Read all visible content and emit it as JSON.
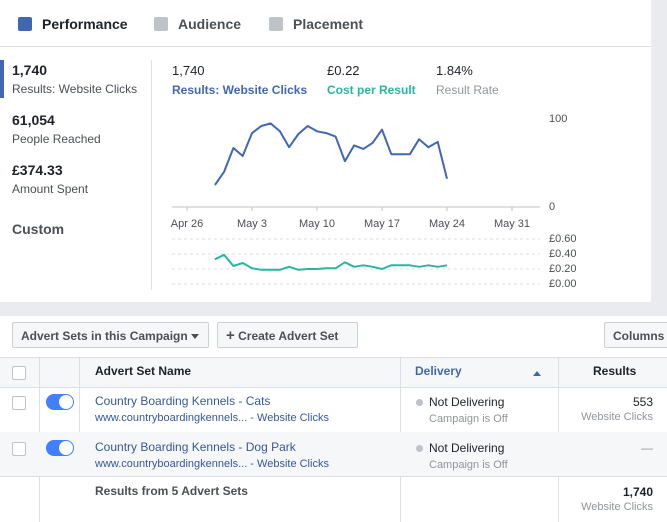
{
  "tabs": [
    "Performance",
    "Audience",
    "Placement"
  ],
  "summary": [
    {
      "value": "1,740",
      "label": "Results: Website Clicks"
    },
    {
      "value": "61,054",
      "label": "People Reached"
    },
    {
      "value": "£374.33",
      "label": "Amount Spent"
    }
  ],
  "date_range": "Custom",
  "metrics": [
    {
      "value": "1,740",
      "label": "Results: Website Clicks",
      "color": "#4267b2"
    },
    {
      "value": "£0.22",
      "label": "Cost per Result",
      "color": "#2bb5a0"
    },
    {
      "value": "1.84%",
      "label": "Result Rate",
      "color": "#90949c"
    }
  ],
  "chart_data": [
    {
      "type": "line",
      "color": "#4267b2",
      "categories": [
        "Apr 26",
        null,
        null,
        null,
        null,
        null,
        null,
        "May 3",
        null,
        null,
        null,
        null,
        null,
        null,
        "May 10",
        null,
        null,
        null,
        null,
        null,
        null,
        "May 17",
        null,
        null,
        null,
        null,
        null,
        null,
        "May 24",
        null,
        null,
        null,
        null,
        null,
        null,
        "May 31"
      ],
      "values": [
        null,
        null,
        null,
        25,
        40,
        67,
        58,
        84,
        92,
        95,
        86,
        68,
        83,
        92,
        86,
        84,
        80,
        52,
        70,
        66,
        73,
        88,
        60,
        60,
        60,
        77,
        68,
        74,
        32,
        null,
        null,
        null,
        null,
        null,
        null,
        null
      ],
      "ylim": [
        0,
        100
      ],
      "yticks": [
        0,
        100
      ]
    },
    {
      "type": "line",
      "color": "#2bb5a0",
      "grid": true,
      "values": [
        null,
        null,
        null,
        0.33,
        0.39,
        0.24,
        0.28,
        0.21,
        0.19,
        0.19,
        0.19,
        0.23,
        0.19,
        0.2,
        0.2,
        0.21,
        0.21,
        0.29,
        0.23,
        0.25,
        0.23,
        0.2,
        0.25,
        0.25,
        0.25,
        0.23,
        0.25,
        0.23,
        0.25,
        null,
        null,
        null,
        null,
        null,
        null,
        null
      ],
      "ylim": [
        0,
        0.6
      ],
      "yticks": [
        {
          "value": 0,
          "label": "£0.00"
        },
        {
          "value": 0.2,
          "label": "£0.20"
        },
        {
          "value": 0.4,
          "label": "£0.40"
        },
        {
          "value": 0.6,
          "label": "£0.60"
        }
      ]
    }
  ],
  "toolbar": {
    "dropdown": "Advert Sets in this Campaign",
    "create": "Create Advert Set",
    "columns": "Columns"
  },
  "table": {
    "headers": [
      "Advert Set Name",
      "Delivery",
      "Results"
    ],
    "rows": [
      {
        "name": "Country Boarding Kennels - Cats",
        "link": "www.countryboardingkennels... - Website Clicks",
        "delivery": "Not Delivering",
        "delivery_note": "Campaign is Off",
        "results": "553",
        "results_note": "Website Clicks"
      },
      {
        "name": "Country Boarding Kennels - Dog Park",
        "link": "www.countryboardingkennels... - Website Clicks",
        "delivery": "Not Delivering",
        "delivery_note": "Campaign is Off",
        "results": "—",
        "results_note": null
      }
    ],
    "footer": {
      "label": "Results from 5 Advert Sets",
      "results": "1,740",
      "results_note": "Website Clicks"
    }
  }
}
